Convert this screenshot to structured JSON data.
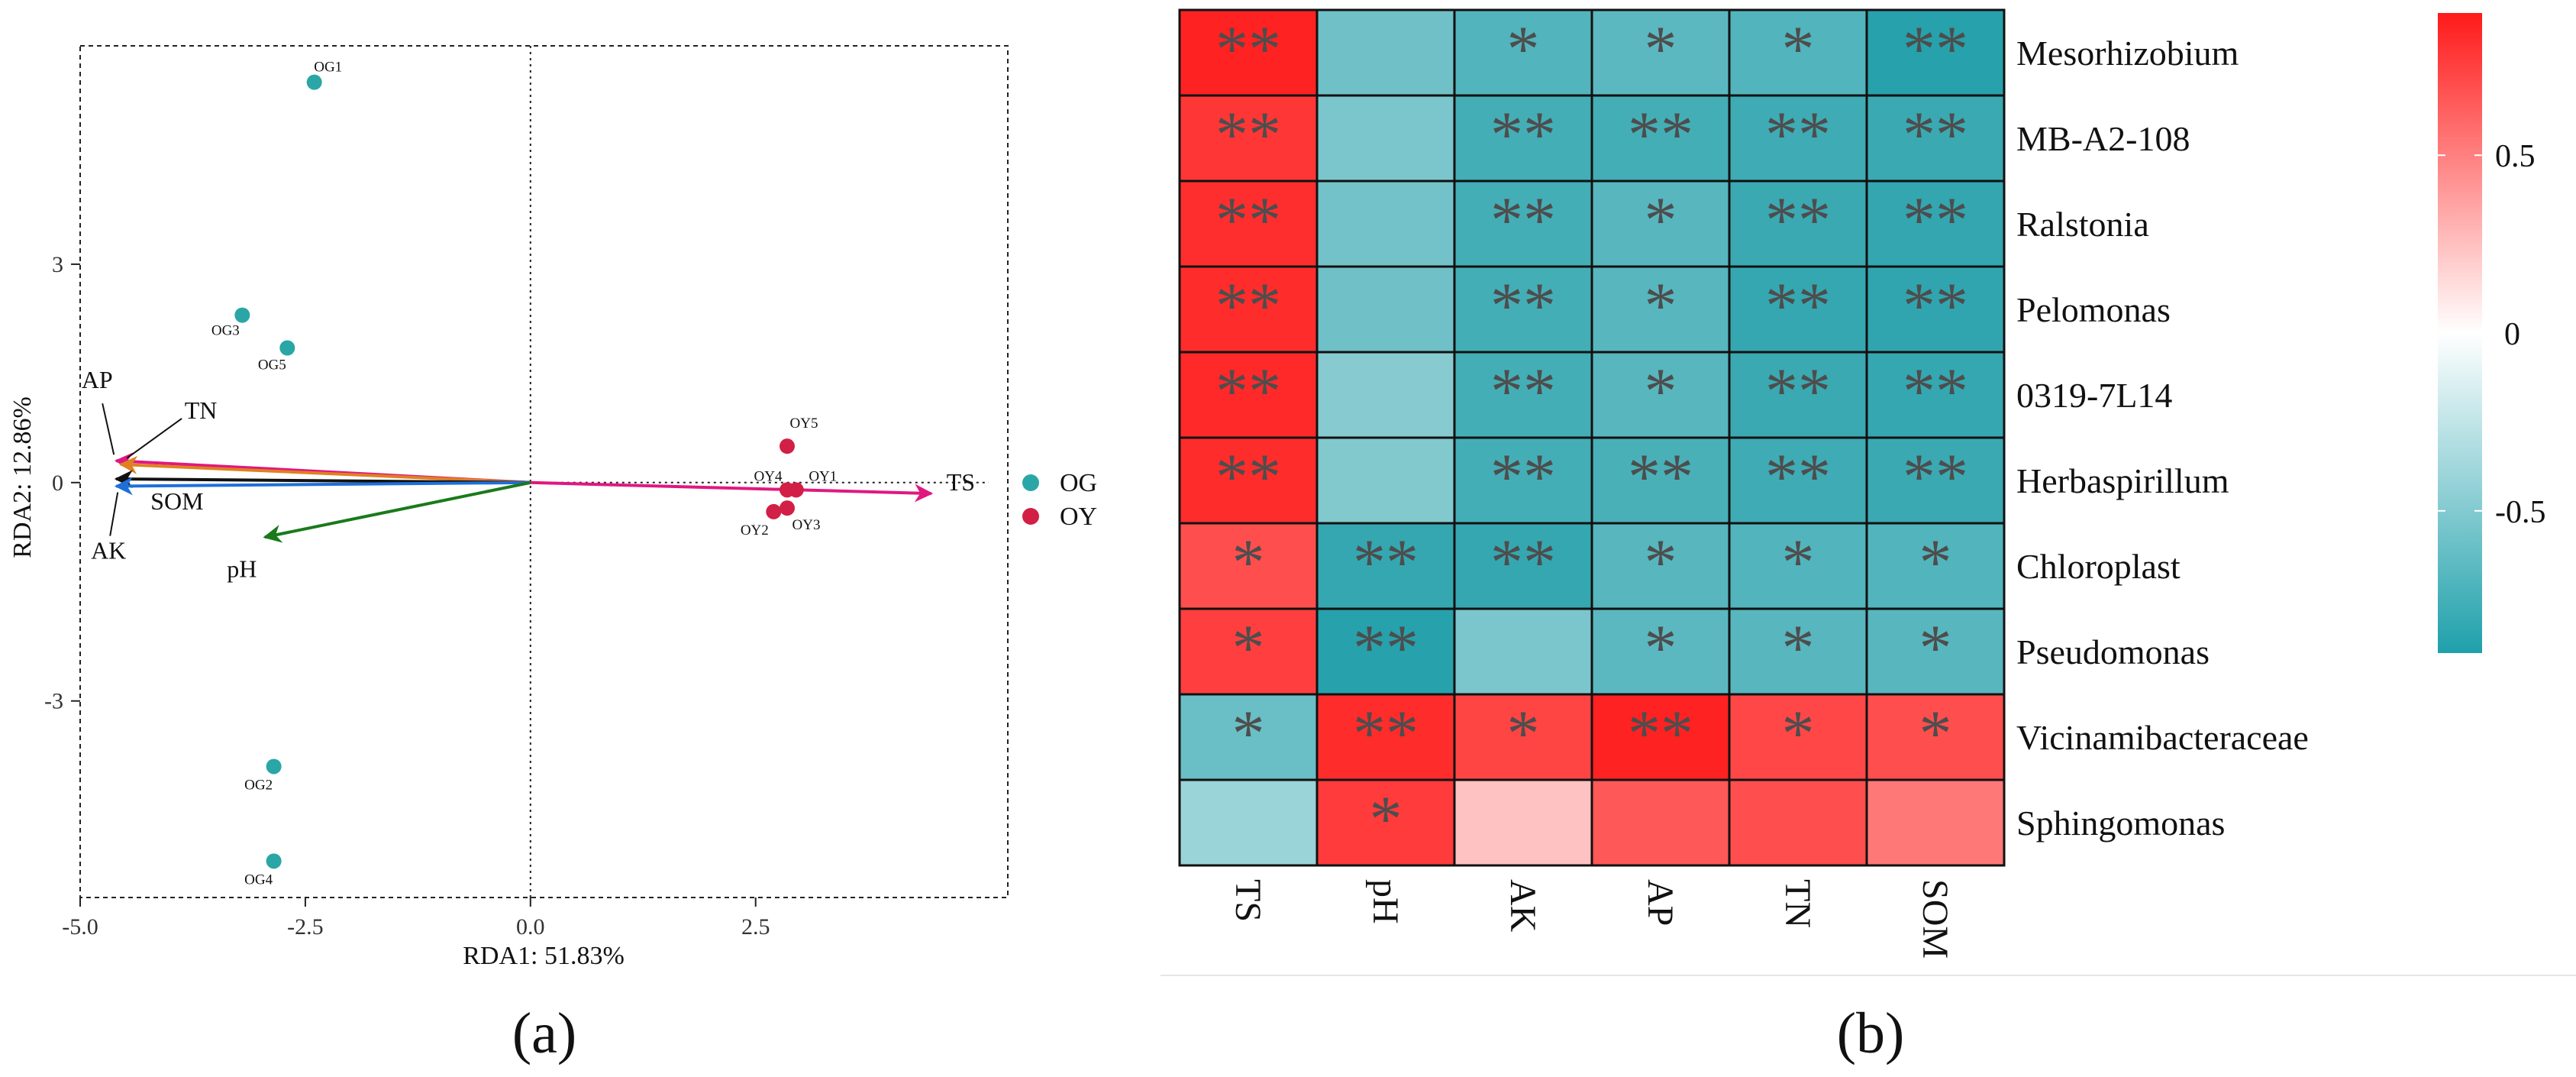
{
  "panel_labels": {
    "a": "(a)",
    "b": "(b)"
  },
  "colors": {
    "OG": "#2aa6a6",
    "OY": "#d21f45",
    "pos": "#ff2222",
    "neg": "#27a1ab",
    "mid": "#ffffff",
    "star": "#4d4d4d"
  },
  "chart_data": [
    {
      "type": "scatter",
      "title": "",
      "xlabel": "RDA1: 51.83%",
      "ylabel": "RDA2: 12.86%",
      "xlim": [
        -5.0,
        5.3
      ],
      "ylim": [
        -5.7,
        6.0
      ],
      "xticks": [
        -5.0,
        -2.5,
        0.0,
        2.5
      ],
      "xtick_labels": [
        "-5.0",
        "-2.5",
        "0.0",
        "2.5"
      ],
      "yticks": [
        -3,
        0,
        3
      ],
      "ytick_labels": [
        "-3",
        "0",
        "3"
      ],
      "legend": {
        "placement": "right",
        "entries": [
          "OG",
          "OY"
        ]
      },
      "series": [
        {
          "name": "OG",
          "points": [
            {
              "label": "OG1",
              "x": -2.4,
              "y": 5.5
            },
            {
              "label": "OG2",
              "x": -2.85,
              "y": -3.9
            },
            {
              "label": "OG3",
              "x": -3.2,
              "y": 2.3
            },
            {
              "label": "OG4",
              "x": -2.85,
              "y": -5.2
            },
            {
              "label": "OG5",
              "x": -2.7,
              "y": 1.85
            }
          ]
        },
        {
          "name": "OY",
          "points": [
            {
              "label": "OY1",
              "x": 2.95,
              "y": -0.1
            },
            {
              "label": "OY2",
              "x": 2.7,
              "y": -0.4
            },
            {
              "label": "OY3",
              "x": 2.85,
              "y": -0.35
            },
            {
              "label": "OY4",
              "x": 2.85,
              "y": -0.1
            },
            {
              "label": "OY5",
              "x": 2.85,
              "y": 0.5
            }
          ]
        }
      ],
      "vectors": [
        {
          "name": "TS",
          "x": 4.45,
          "y": -0.15,
          "color": "#e0187f"
        },
        {
          "name": "AP",
          "x": -4.6,
          "y": 0.3,
          "color": "#e0187f"
        },
        {
          "name": "TN",
          "x": -4.55,
          "y": 0.25,
          "color": "#e08020"
        },
        {
          "name": "SOM",
          "x": -4.6,
          "y": 0.05,
          "color": "#111111"
        },
        {
          "name": "AK",
          "x": -4.6,
          "y": -0.05,
          "color": "#1f6fd8"
        },
        {
          "name": "pH",
          "x": -2.95,
          "y": -0.75,
          "color": "#1a7a1a"
        }
      ]
    },
    {
      "type": "heatmap",
      "rows": [
        "Mesorhizobium",
        "MB-A2-108",
        "Ralstonia",
        "Pelomonas",
        "0319-7L14",
        "Herbaspirillum",
        "Chloroplast",
        "Pseudomonas",
        "Vicinamibacteraceae",
        "Sphingomonas"
      ],
      "columns": [
        "TS",
        "pH",
        "AK",
        "AP",
        "TN",
        "SOM"
      ],
      "values": [
        [
          0.95,
          -0.6,
          -0.72,
          -0.68,
          -0.72,
          -0.9
        ],
        [
          0.82,
          -0.55,
          -0.78,
          -0.78,
          -0.8,
          -0.82
        ],
        [
          0.85,
          -0.58,
          -0.78,
          -0.7,
          -0.82,
          -0.85
        ],
        [
          0.86,
          -0.6,
          -0.78,
          -0.7,
          -0.84,
          -0.86
        ],
        [
          0.87,
          -0.5,
          -0.78,
          -0.7,
          -0.82,
          -0.84
        ],
        [
          0.86,
          -0.52,
          -0.78,
          -0.76,
          -0.8,
          -0.82
        ],
        [
          0.72,
          -0.84,
          -0.84,
          -0.7,
          -0.72,
          -0.72
        ],
        [
          0.78,
          -0.9,
          -0.55,
          -0.68,
          -0.7,
          -0.7
        ],
        [
          -0.62,
          0.86,
          0.76,
          0.92,
          0.75,
          0.72
        ],
        [
          -0.42,
          0.8,
          0.25,
          0.68,
          0.72,
          0.55
        ]
      ],
      "significance": [
        [
          "**",
          "",
          "*",
          "*",
          "*",
          "**"
        ],
        [
          "**",
          "",
          "**",
          "**",
          "**",
          "**"
        ],
        [
          "**",
          "",
          "**",
          "*",
          "**",
          "**"
        ],
        [
          "**",
          "",
          "**",
          "*",
          "**",
          "**"
        ],
        [
          "**",
          "",
          "**",
          "*",
          "**",
          "**"
        ],
        [
          "**",
          "",
          "**",
          "**",
          "**",
          "**"
        ],
        [
          "*",
          "**",
          "**",
          "*",
          "*",
          "*"
        ],
        [
          "*",
          "**",
          "",
          "*",
          "*",
          "*"
        ],
        [
          "*",
          "**",
          "*",
          "**",
          "*",
          "*"
        ],
        [
          "",
          "*",
          "",
          "",
          "",
          ""
        ]
      ],
      "colorbar": {
        "ticks": [
          0.5,
          0,
          -0.5
        ],
        "tick_labels": [
          "0.5",
          "0",
          "-0.5"
        ],
        "range": [
          -0.9,
          0.9
        ]
      }
    }
  ]
}
